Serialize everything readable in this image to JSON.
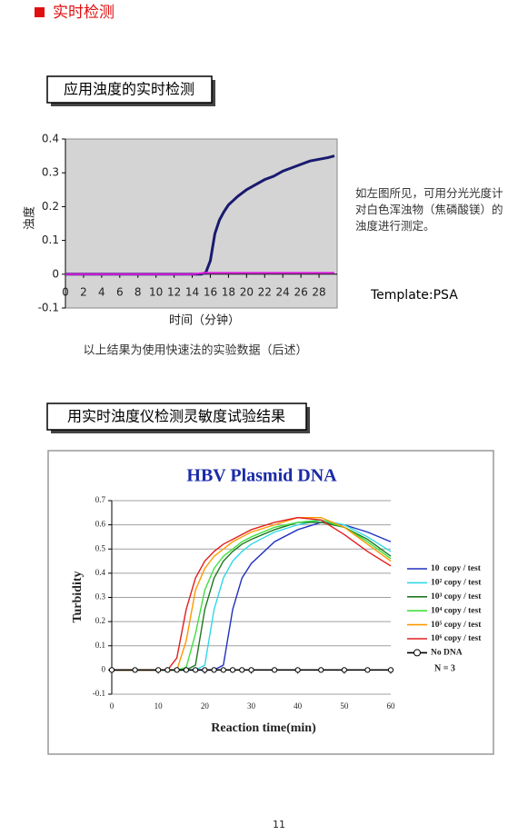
{
  "header": {
    "title": "实时检测"
  },
  "sections": [
    {
      "title": "应用浊度的实时检测",
      "note": "如左图所见，可用分光光度计对白色浑浊物（焦磷酸镁）的浊度进行测定。",
      "template": "Template:PSA",
      "caption": "以上结果为使用快速法的实验数据（后述）"
    },
    {
      "title": "用实时浊度仪检测灵敏度试验结果"
    }
  ],
  "chart_data": [
    {
      "type": "line",
      "ylabel": "浊度",
      "xlabel": "时间（分钟）",
      "x": [
        0,
        2,
        4,
        6,
        8,
        10,
        12,
        14,
        15,
        15.5,
        16,
        16.5,
        17,
        17.5,
        18,
        19,
        20,
        21,
        22,
        23,
        24,
        25,
        26,
        27,
        28,
        29,
        29.7
      ],
      "series": [
        {
          "color": "#1a1a70",
          "values": [
            0,
            0,
            0,
            0,
            0,
            0,
            0,
            0,
            0,
            0.005,
            0.04,
            0.12,
            0.16,
            0.185,
            0.205,
            0.23,
            0.25,
            0.265,
            0.28,
            0.29,
            0.305,
            0.315,
            0.325,
            0.335,
            0.34,
            0.345,
            0.35
          ]
        },
        {
          "color": "#e020e0",
          "values": [
            0,
            0,
            0,
            0,
            0,
            0,
            0,
            0,
            0.003,
            0.004,
            0.004,
            0.004,
            0.004,
            0.004,
            0.004,
            0.004,
            0.004,
            0.004,
            0.004,
            0.004,
            0.004,
            0.004,
            0.004,
            0.004,
            0.004,
            0.004,
            0.004
          ]
        }
      ],
      "xlim": [
        0,
        30
      ],
      "ylim": [
        -0.1,
        0.4
      ],
      "xticks": [
        0,
        2,
        4,
        6,
        8,
        10,
        12,
        14,
        16,
        18,
        20,
        22,
        24,
        26,
        28
      ],
      "yticks": [
        -0.1,
        0,
        0.1,
        0.2,
        0.3,
        0.4
      ],
      "grid": false,
      "background": "#d4d4d4"
    },
    {
      "type": "line",
      "title": "HBV Plasmid DNA",
      "ylabel": "Turbidity",
      "xlabel": "Reaction time(min)",
      "annotation": "N = 3",
      "x": [
        0,
        5,
        10,
        12,
        14,
        16,
        18,
        20,
        22,
        24,
        26,
        28,
        30,
        35,
        40,
        45,
        50,
        55,
        60
      ],
      "series": [
        {
          "name": "10  copy / test",
          "color": "#2030c0",
          "values": [
            0,
            0,
            0,
            0,
            0,
            0,
            0,
            0,
            0,
            0.02,
            0.25,
            0.38,
            0.44,
            0.53,
            0.58,
            0.61,
            0.6,
            0.57,
            0.53
          ]
        },
        {
          "name": "10² copy / test",
          "color": "#30d8e8",
          "values": [
            0,
            0,
            0,
            0,
            0,
            0,
            0,
            0.02,
            0.25,
            0.38,
            0.45,
            0.49,
            0.52,
            0.57,
            0.6,
            0.62,
            0.6,
            0.55,
            0.49
          ]
        },
        {
          "name": "10³ copy / test",
          "color": "#207820",
          "values": [
            0,
            0,
            0,
            0,
            0,
            0,
            0.02,
            0.25,
            0.38,
            0.45,
            0.49,
            0.52,
            0.54,
            0.58,
            0.61,
            0.61,
            0.59,
            0.54,
            0.47
          ]
        },
        {
          "name": "10⁴ copy / test",
          "color": "#40e040",
          "values": [
            0,
            0,
            0,
            0,
            0,
            0.01,
            0.15,
            0.33,
            0.42,
            0.47,
            0.5,
            0.53,
            0.55,
            0.59,
            0.61,
            0.62,
            0.59,
            0.53,
            0.46
          ]
        },
        {
          "name": "10⁵ copy / test",
          "color": "#ff9900",
          "values": [
            0,
            0,
            0,
            0,
            0,
            0.12,
            0.33,
            0.42,
            0.47,
            0.5,
            0.53,
            0.55,
            0.57,
            0.6,
            0.63,
            0.63,
            0.59,
            0.52,
            0.45
          ]
        },
        {
          "name": "10⁶ copy / test",
          "color": "#e02020",
          "values": [
            0,
            0,
            0,
            0,
            0.05,
            0.25,
            0.38,
            0.45,
            0.49,
            0.52,
            0.54,
            0.56,
            0.58,
            0.61,
            0.63,
            0.62,
            0.56,
            0.49,
            0.43
          ]
        },
        {
          "name": "No DNA",
          "color": "#000000",
          "marker": "circle",
          "values": [
            0,
            0,
            0,
            0,
            0,
            0,
            0,
            0,
            0,
            0,
            0,
            0,
            0,
            0,
            0,
            0,
            0,
            0,
            0
          ]
        }
      ],
      "xlim": [
        0,
        60
      ],
      "ylim": [
        -0.1,
        0.7
      ],
      "xticks": [
        0,
        10,
        20,
        30,
        40,
        50,
        60
      ],
      "yticks": [
        -0.1,
        0,
        0.1,
        0.2,
        0.3,
        0.4,
        0.5,
        0.6,
        0.7
      ],
      "grid": true,
      "background": "#ffffff",
      "legend": "right"
    }
  ],
  "page_number": "11"
}
